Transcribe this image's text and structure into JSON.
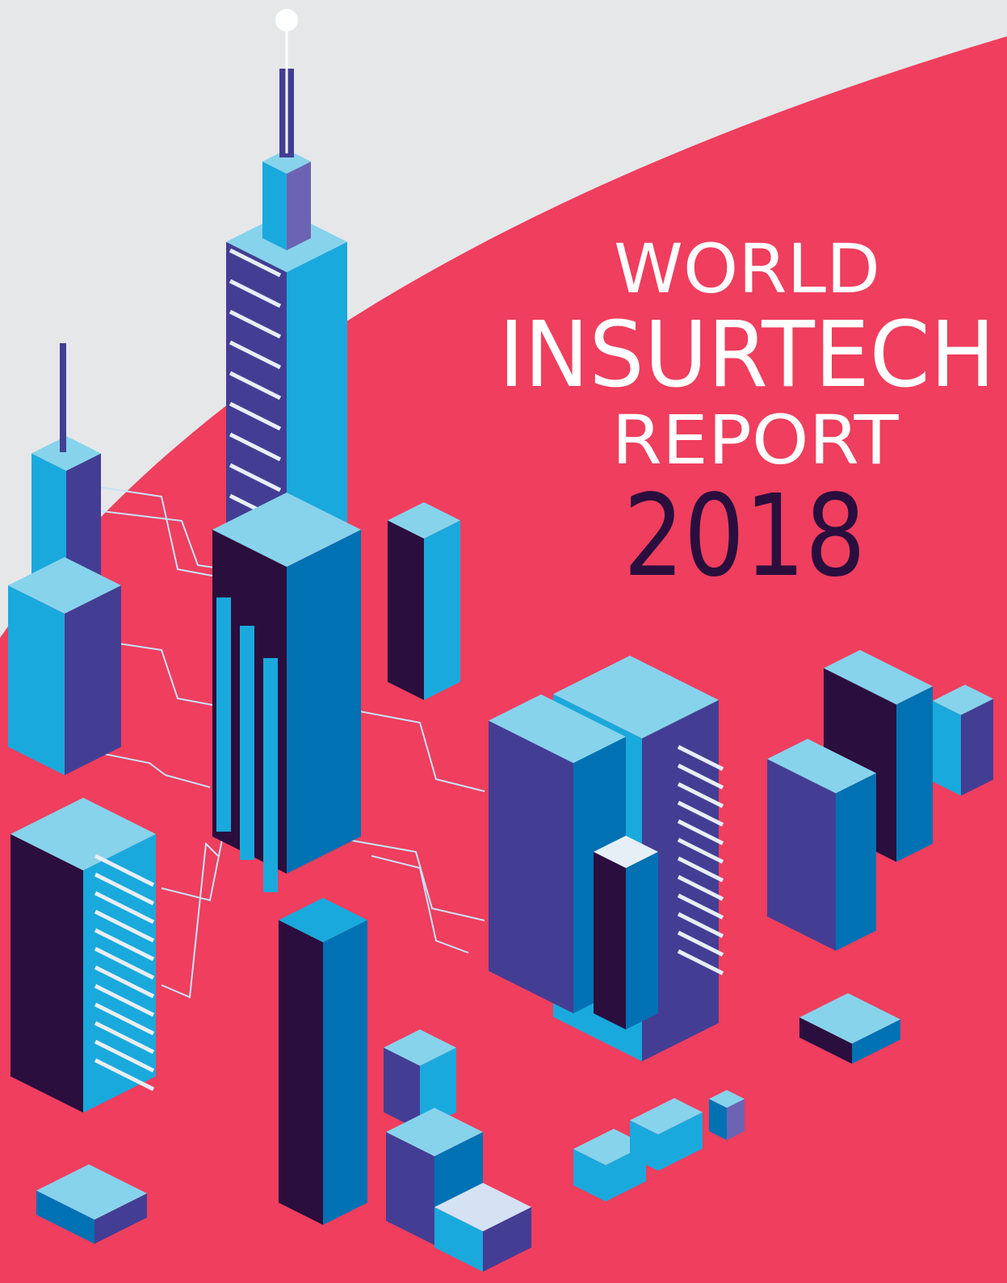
{
  "cover": {
    "line1": "WORLD",
    "line2": "INSURTECH",
    "line3": "REPORT",
    "year": "2018"
  }
}
